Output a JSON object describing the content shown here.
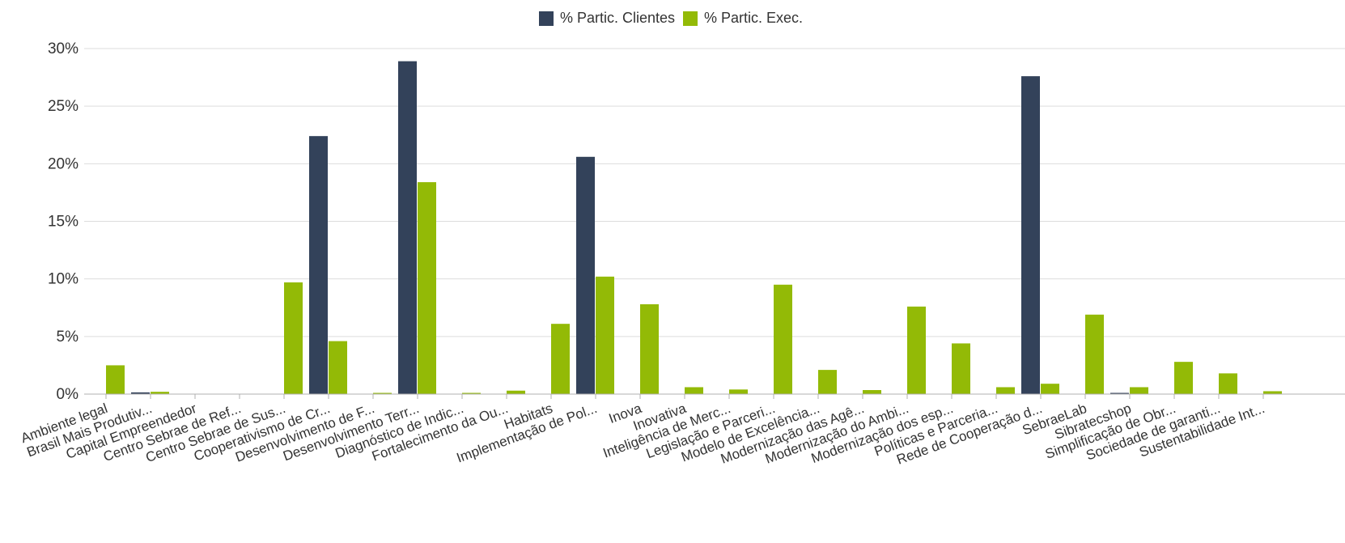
{
  "legend": {
    "series_a": "% Partic. Clientes",
    "series_b": "% Partic. Exec."
  },
  "colors": {
    "series_a": "#33425a",
    "series_b": "#93ba06",
    "grid": "#dddddd",
    "text": "#333333"
  },
  "chart_data": {
    "type": "bar",
    "categories": [
      "Ambiente legal",
      "Brasil Mais Produtiv...",
      "Capital Empreendedor",
      "Centro Sebrae de Ref...",
      "Centro Sebrae de Sus...",
      "Cooperativismo de Cr...",
      "Desenvolvimento de F...",
      "Desenvolvimento Terr...",
      "Diagnóstico de Indic...",
      "Fortalecimento da Ou...",
      "Habitats",
      "Implementação de Pol...",
      "Inova",
      "Inovativa",
      "Inteligência de Merc...",
      "Legislação e Parceri...",
      "Modelo de Excelência...",
      "Modernização das Agê...",
      "Modernização do Ambi...",
      "Modernização dos esp...",
      "Políticas e Parceria...",
      "Rede de Cooperação d...",
      "SebraeLab",
      "Sibratecshop",
      "Simplificação de Obr...",
      "Sociedade de garanti...",
      "Sustentabilidade Int..."
    ],
    "series": [
      {
        "name": "% Partic. Clientes",
        "values": [
          0,
          0.15,
          0,
          0,
          0,
          22.4,
          0,
          28.9,
          0,
          0,
          0,
          20.6,
          0,
          0,
          0,
          0,
          0,
          0,
          0,
          0,
          0,
          27.6,
          0,
          0.1,
          0,
          0,
          0
        ]
      },
      {
        "name": "% Partic. Exec.",
        "values": [
          2.5,
          0.2,
          0,
          0,
          9.7,
          4.6,
          0.1,
          18.4,
          0.05,
          0.3,
          6.1,
          10.2,
          7.8,
          0.6,
          0.4,
          9.5,
          2.1,
          0.35,
          7.6,
          4.4,
          0.6,
          0.9,
          6.9,
          0.6,
          2.8,
          1.8,
          0.25
        ]
      }
    ],
    "yticks": [
      "0%",
      "5%",
      "10%",
      "15%",
      "20%",
      "25%",
      "30%"
    ],
    "ylim": [
      0,
      30
    ],
    "grid": true,
    "legend_position": "top"
  }
}
